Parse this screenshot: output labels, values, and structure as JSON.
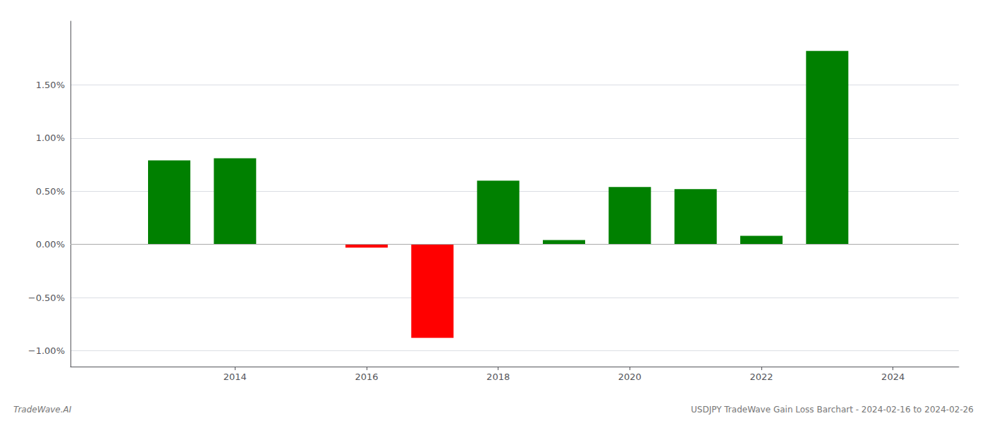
{
  "chart_data": {
    "type": "bar",
    "title": "USDJPY TradeWave Gain Loss Barchart - 2024-02-16 to 2024-02-26",
    "annotations": [
      "TradeWave.AI"
    ],
    "x": [
      2013,
      2014,
      2016,
      2017,
      2018,
      2019,
      2020,
      2021,
      2022,
      2023
    ],
    "values": [
      0.0079,
      0.0081,
      -0.0003,
      -0.0088,
      0.006,
      0.0004,
      0.0054,
      0.0052,
      0.0008,
      0.0182
    ],
    "colors": [
      "#008000",
      "#008000",
      "#ff0000",
      "#ff0000",
      "#008000",
      "#008000",
      "#008000",
      "#008000",
      "#008000",
      "#008000"
    ],
    "xlim": [
      2011.5,
      2025.0
    ],
    "xticks": [
      2014,
      2016,
      2018,
      2020,
      2022,
      2024
    ],
    "ylim": [
      -0.0115,
      0.021
    ],
    "yticks": [
      {
        "value": -0.01,
        "label": "−1.00%"
      },
      {
        "value": -0.005,
        "label": "−0.50%"
      },
      {
        "value": 0.0,
        "label": "0.00%"
      },
      {
        "value": 0.005,
        "label": "0.50%"
      },
      {
        "value": 0.01,
        "label": "1.00%"
      },
      {
        "value": 0.015,
        "label": "1.50%"
      }
    ],
    "grid": true
  }
}
